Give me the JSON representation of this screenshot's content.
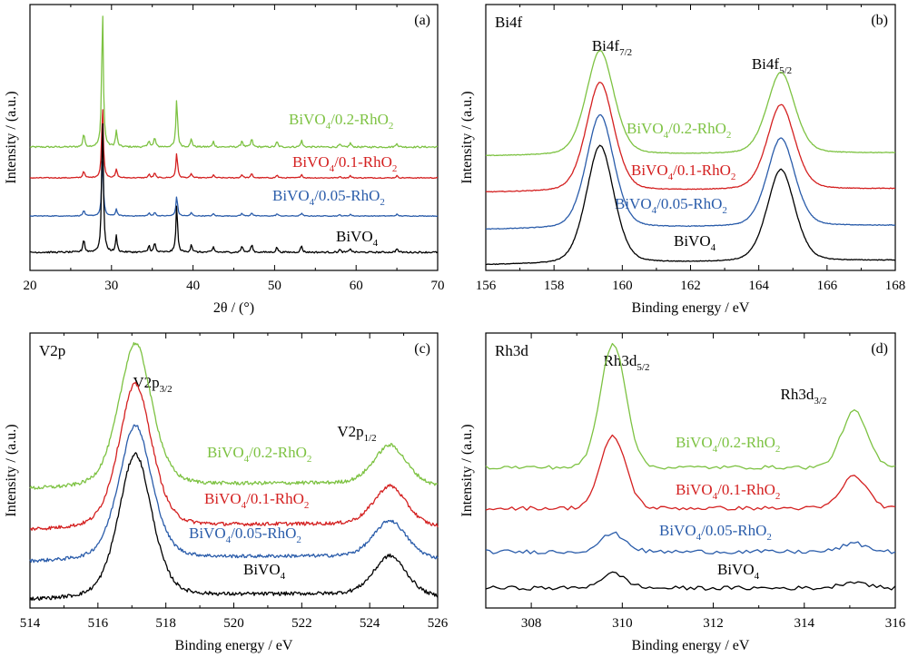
{
  "colors": {
    "BiVO4": "#000000",
    "BiVO4/0.05-RhO2": "#2a5caa",
    "BiVO4/0.1-RhO2": "#d42020",
    "BiVO4/0.2-RhO2": "#7dc242"
  },
  "chart_data": [
    {
      "type": "line",
      "panel": "(a)",
      "element_label": "",
      "xlabel": "2θ / (°)",
      "ylabel": "Intensity / (a.u.)",
      "xlim": [
        20,
        70
      ],
      "xticks": [
        20,
        30,
        40,
        50,
        60,
        70
      ],
      "y_numeric_ticks": false,
      "peaks_x": [
        26.6,
        28.9,
        30.6,
        34.6,
        35.3,
        38.0,
        39.8,
        42.5,
        46.0,
        47.2,
        50.3,
        53.3,
        58.0,
        59.3,
        65.0
      ],
      "series": [
        {
          "name": "BiVO4/0.2-RhO2",
          "label_parts": [
            [
              "BiVO",
              ""
            ],
            [
              "4",
              "sub"
            ],
            [
              "/0.2-RhO",
              ""
            ],
            [
              "2",
              "sub"
            ]
          ],
          "baseline": 0.1,
          "max_intensity": 1.0
        },
        {
          "name": "BiVO4/0.1-RhO2",
          "label_parts": [
            [
              "BiVO",
              ""
            ],
            [
              "4",
              "sub"
            ],
            [
              "/0.1-RhO",
              ""
            ],
            [
              "2",
              "sub"
            ]
          ],
          "baseline": 0.1,
          "max_intensity": 0.9
        },
        {
          "name": "BiVO4/0.05-RhO2",
          "label_parts": [
            [
              "BiVO",
              ""
            ],
            [
              "4",
              "sub"
            ],
            [
              "/0.05-RhO",
              ""
            ],
            [
              "2",
              "sub"
            ]
          ],
          "baseline": 0.1,
          "max_intensity": 0.85
        },
        {
          "name": "BiVO4",
          "label_parts": [
            [
              "BiVO",
              ""
            ],
            [
              "4",
              "sub"
            ]
          ],
          "baseline": 0.1,
          "max_intensity": 1.0
        }
      ],
      "peak_labels": []
    },
    {
      "type": "line",
      "panel": "(b)",
      "element_label": "Bi4f",
      "xlabel": "Binding energy / eV",
      "ylabel": "Intensity / (a.u.)",
      "xlim": [
        156,
        168
      ],
      "xticks": [
        156,
        158,
        160,
        162,
        164,
        166,
        168
      ],
      "y_numeric_ticks": false,
      "peak_labels": [
        {
          "parts": [
            [
              "Bi4f",
              ""
            ],
            [
              "7/2",
              "sub"
            ]
          ],
          "x": 159.3
        },
        {
          "parts": [
            [
              "Bi4f",
              ""
            ],
            [
              "5/2",
              "sub"
            ]
          ],
          "x": 164.6
        }
      ],
      "peaks": [
        {
          "center": 159.35,
          "height": 1.0
        },
        {
          "center": 164.65,
          "height": 0.78
        }
      ],
      "series": [
        {
          "name": "BiVO4/0.2-RhO2",
          "label_parts": [
            [
              "BiVO",
              ""
            ],
            [
              "4",
              "sub"
            ],
            [
              "/0.2-RhO",
              ""
            ],
            [
              "2",
              "sub"
            ]
          ],
          "baseline": 0.3,
          "max_intensity": 1.3
        },
        {
          "name": "BiVO4/0.1-RhO2",
          "label_parts": [
            [
              "BiVO",
              ""
            ],
            [
              "4",
              "sub"
            ],
            [
              "/0.1-RhO",
              ""
            ],
            [
              "2",
              "sub"
            ]
          ],
          "baseline": 0.27,
          "max_intensity": 1.4
        },
        {
          "name": "BiVO4/0.05-RhO2",
          "label_parts": [
            [
              "BiVO",
              ""
            ],
            [
              "4",
              "sub"
            ],
            [
              "/0.05-RhO",
              ""
            ],
            [
              "2",
              "sub"
            ]
          ],
          "baseline": 0.25,
          "max_intensity": 1.4
        },
        {
          "name": "BiVO4",
          "label_parts": [
            [
              "BiVO",
              ""
            ],
            [
              "4",
              "sub"
            ]
          ],
          "baseline": 0.2,
          "max_intensity": 1.5
        }
      ]
    },
    {
      "type": "line",
      "panel": "(c)",
      "element_label": "V2p",
      "xlabel": "Binding energy / eV",
      "ylabel": "Intensity / (a.u.)",
      "xlim": [
        514,
        526
      ],
      "xticks": [
        514,
        516,
        518,
        520,
        522,
        524,
        526
      ],
      "y_numeric_ticks": false,
      "peak_labels": [
        {
          "parts": [
            [
              "V2p",
              ""
            ],
            [
              "3/2",
              "sub"
            ]
          ],
          "x": 517.1
        },
        {
          "parts": [
            [
              "V2p",
              ""
            ],
            [
              "1/2",
              "sub"
            ]
          ],
          "x": 524.6
        }
      ],
      "peaks": [
        {
          "center": 517.1,
          "height": 1.0
        },
        {
          "center": 524.6,
          "height": 0.28
        }
      ],
      "series": [
        {
          "name": "BiVO4/0.2-RhO2",
          "label_parts": [
            [
              "BiVO",
              ""
            ],
            [
              "4",
              "sub"
            ],
            [
              "/0.2-RhO",
              ""
            ],
            [
              "2",
              "sub"
            ]
          ],
          "baseline": 0.2,
          "max_intensity": 1.0
        },
        {
          "name": "BiVO4/0.1-RhO2",
          "label_parts": [
            [
              "BiVO",
              ""
            ],
            [
              "4",
              "sub"
            ],
            [
              "/0.1-RhO",
              ""
            ],
            [
              "2",
              "sub"
            ]
          ],
          "baseline": 0.2,
          "max_intensity": 1.0
        },
        {
          "name": "BiVO4/0.05-RhO2",
          "label_parts": [
            [
              "BiVO",
              ""
            ],
            [
              "4",
              "sub"
            ],
            [
              "/0.05-RhO",
              ""
            ],
            [
              "2",
              "sub"
            ]
          ],
          "baseline": 0.2,
          "max_intensity": 1.0
        },
        {
          "name": "BiVO4",
          "label_parts": [
            [
              "BiVO",
              ""
            ],
            [
              "4",
              "sub"
            ]
          ],
          "baseline": 0.2,
          "max_intensity": 1.0
        }
      ]
    },
    {
      "type": "line",
      "panel": "(d)",
      "element_label": "Rh3d",
      "xlabel": "Binding energy / eV",
      "ylabel": "Intensity / (a.u.)",
      "xlim": [
        307,
        316
      ],
      "xticks": [
        308,
        310,
        312,
        314,
        316
      ],
      "y_numeric_ticks": false,
      "peak_labels": [
        {
          "parts": [
            [
              "Rh3d",
              ""
            ],
            [
              "5/2",
              "sub"
            ]
          ],
          "x": 309.8
        },
        {
          "parts": [
            [
              "Rh3d",
              ""
            ],
            [
              "3/2",
              "sub"
            ]
          ],
          "x": 315.1
        }
      ],
      "peaks": [
        {
          "center": 309.8,
          "height": 1.0
        },
        {
          "center": 315.1,
          "height": 0.45
        }
      ],
      "series": [
        {
          "name": "BiVO4/0.2-RhO2",
          "label_parts": [
            [
              "BiVO",
              ""
            ],
            [
              "4",
              "sub"
            ],
            [
              "/0.2-RhO",
              ""
            ],
            [
              "2",
              "sub"
            ]
          ],
          "baseline": 1.0,
          "max_intensity": 1.0
        },
        {
          "name": "BiVO4/0.1-RhO2",
          "label_parts": [
            [
              "BiVO",
              ""
            ],
            [
              "4",
              "sub"
            ],
            [
              "/0.1-RhO",
              ""
            ],
            [
              "2",
              "sub"
            ]
          ],
          "baseline": 1.0,
          "max_intensity": 0.55
        },
        {
          "name": "BiVO4/0.05-RhO2",
          "label_parts": [
            [
              "BiVO",
              ""
            ],
            [
              "4",
              "sub"
            ],
            [
              "/0.05-RhO",
              ""
            ],
            [
              "2",
              "sub"
            ]
          ],
          "baseline": 1.0,
          "max_intensity": 0.2
        },
        {
          "name": "BiVO4",
          "label_parts": [
            [
              "BiVO",
              ""
            ],
            [
              "4",
              "sub"
            ]
          ],
          "baseline": 1.0,
          "max_intensity": 0.15
        }
      ]
    }
  ]
}
